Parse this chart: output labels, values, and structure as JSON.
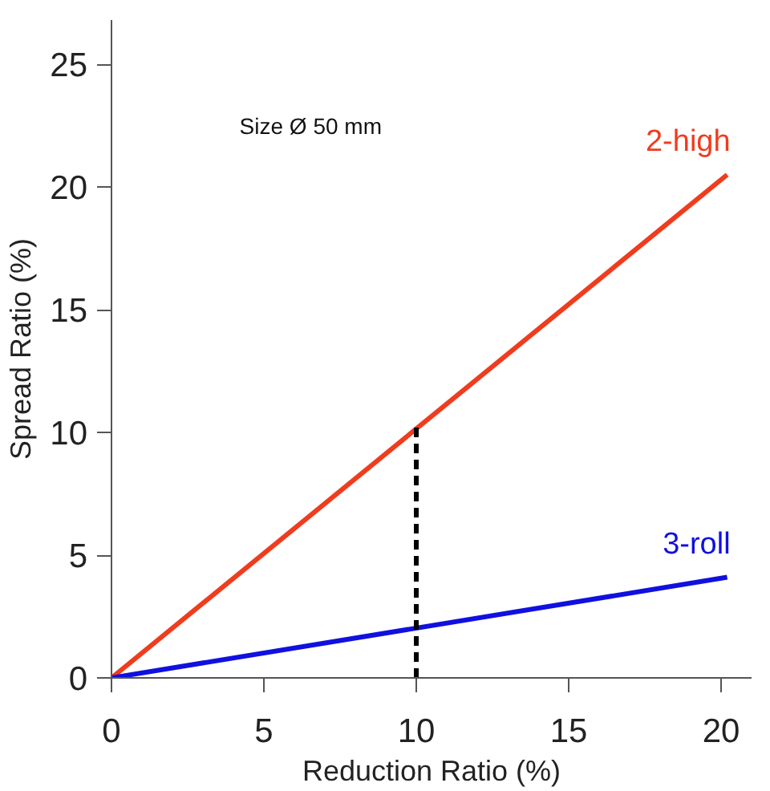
{
  "chart_data": {
    "type": "line",
    "xlabel": "Reduction Ratio (%)",
    "ylabel": "Spread Ratio (%)",
    "annotations": [
      "Size Ø 50 mm"
    ],
    "xlim": [
      0,
      21
    ],
    "ylim": [
      0,
      26.8
    ],
    "xticks": [
      0,
      5,
      10,
      15,
      20
    ],
    "yticks": [
      0,
      5,
      10,
      15,
      20,
      25
    ],
    "grid": false,
    "marker": "none",
    "series": [
      {
        "name": "2-high",
        "color": "#f03c1e",
        "x": [
          0,
          20.2
        ],
        "values": [
          0,
          20.5
        ]
      },
      {
        "name": "3-roll",
        "color": "#1010e0",
        "x": [
          0,
          20.2
        ],
        "values": [
          0,
          4.1
        ]
      },
      {
        "color": "#000000",
        "x": [
          10,
          10
        ],
        "values": [
          0,
          10.2
        ],
        "line_style": "dashed"
      }
    ]
  }
}
